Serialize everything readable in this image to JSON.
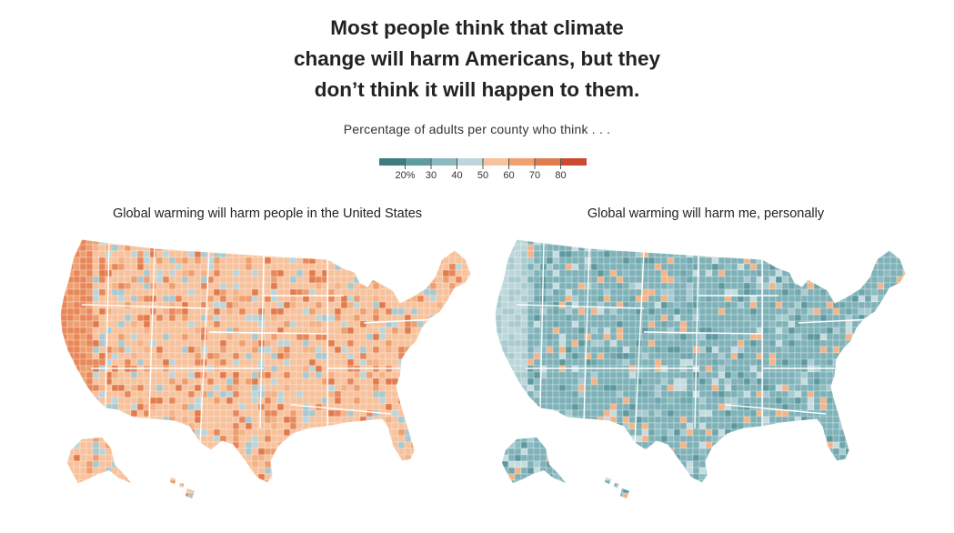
{
  "header": {
    "title_lines": [
      "Most people think that climate",
      "change will harm Americans, but they",
      "don’t think it will happen to them."
    ],
    "subtitle": "Percentage of adults per county who think . . ."
  },
  "legend": {
    "colors": [
      "#3e7d7f",
      "#5f9ca0",
      "#8cb9be",
      "#bdd6db",
      "#f6c39e",
      "#efa171",
      "#e07d4e",
      "#c94a2f"
    ],
    "labels": [
      "20%",
      "30",
      "40",
      "50",
      "60",
      "70",
      "80"
    ]
  },
  "maps": [
    {
      "label": "Global warming will harm people in the United States",
      "palette": "warm"
    },
    {
      "label": "Global warming will harm me, personally",
      "palette": "cool"
    }
  ],
  "palettes": {
    "warm": {
      "base": "#f7c29c",
      "border": "#ffffff",
      "accents": [
        "#ee9f6f",
        "#e8885a",
        "#bdd4d9",
        "#a9c9cf",
        "#f4b286",
        "#e27b4b"
      ]
    },
    "cool": {
      "base": "#7fb2b8",
      "border": "#ffffff",
      "accents": [
        "#6fa7ae",
        "#a9cbd0",
        "#c6dcdf",
        "#5e999f",
        "#f2b58a",
        "#8cbcc2"
      ]
    }
  }
}
